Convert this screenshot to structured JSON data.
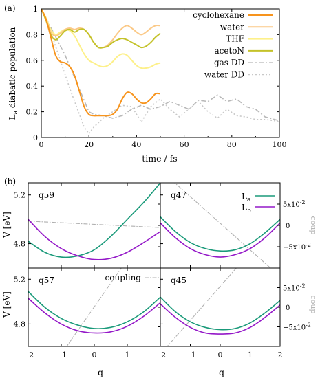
{
  "panel_a": {
    "label": "(a)",
    "xlabel": "time / fs",
    "ylabel_main": "L",
    "ylabel_sub": "a",
    "ylabel_rest": " diabatic population"
  },
  "panel_b": {
    "label": "(b)",
    "ylabel": "V [eV]",
    "xlabel": "q",
    "right_label": "coup",
    "legend": {
      "La_main": "L",
      "La_sub": "a",
      "Lb_main": "L",
      "Lb_sub": "b",
      "coupling": "coupling"
    }
  },
  "colors": {
    "cyclohexane": "#f7941d",
    "water": "#fbc987",
    "THF": "#fdf08a",
    "acetoN": "#c4c22a",
    "gas_dd": "#b8b8b8",
    "water_dd": "#c8c8c8",
    "La": "#1a9a7a",
    "Lb": "#9418c8",
    "coupling": "#b0b0b0"
  },
  "chart_data": [
    {
      "type": "line",
      "panel": "a",
      "xlabel": "time / fs",
      "ylabel": "La diabatic population",
      "xlim": [
        0,
        100
      ],
      "ylim": [
        0,
        1
      ],
      "xticks": [
        "0",
        "20",
        "40",
        "60",
        "80",
        "100"
      ],
      "yticks": [
        "0",
        "0.2",
        "0.4",
        "0.6",
        "0.8",
        "1"
      ],
      "legend_position": "top-right",
      "series": [
        {
          "name": "cyclohexane",
          "style": "solid",
          "x": [
            0,
            2,
            4,
            6,
            8,
            10,
            12,
            14,
            16,
            18,
            20,
            22,
            24,
            26,
            28,
            30,
            32,
            34,
            36,
            38,
            40,
            42,
            44,
            46,
            48,
            50
          ],
          "y": [
            1.0,
            0.92,
            0.78,
            0.64,
            0.59,
            0.58,
            0.55,
            0.48,
            0.36,
            0.24,
            0.18,
            0.17,
            0.17,
            0.17,
            0.17,
            0.18,
            0.22,
            0.3,
            0.35,
            0.34,
            0.3,
            0.27,
            0.27,
            0.3,
            0.34,
            0.34
          ]
        },
        {
          "name": "water",
          "style": "solid",
          "x": [
            0,
            2,
            4,
            6,
            8,
            10,
            12,
            14,
            16,
            18,
            20,
            22,
            24,
            26,
            28,
            30,
            32,
            34,
            36,
            38,
            40,
            42,
            44,
            46,
            48,
            50
          ],
          "y": [
            1.0,
            0.92,
            0.82,
            0.79,
            0.81,
            0.84,
            0.85,
            0.84,
            0.85,
            0.84,
            0.8,
            0.74,
            0.7,
            0.7,
            0.72,
            0.76,
            0.81,
            0.85,
            0.87,
            0.85,
            0.82,
            0.8,
            0.82,
            0.85,
            0.87,
            0.87
          ]
        },
        {
          "name": "THF",
          "style": "solid",
          "x": [
            0,
            2,
            4,
            6,
            8,
            10,
            12,
            14,
            16,
            18,
            20,
            22,
            24,
            26,
            28,
            30,
            32,
            34,
            36,
            38,
            40,
            42,
            44,
            46,
            48,
            50
          ],
          "y": [
            1.0,
            0.93,
            0.84,
            0.8,
            0.82,
            0.84,
            0.83,
            0.79,
            0.72,
            0.65,
            0.6,
            0.58,
            0.56,
            0.55,
            0.56,
            0.59,
            0.63,
            0.65,
            0.64,
            0.6,
            0.56,
            0.54,
            0.54,
            0.55,
            0.57,
            0.58
          ]
        },
        {
          "name": "acetoN",
          "style": "solid",
          "x": [
            0,
            2,
            4,
            6,
            8,
            10,
            12,
            14,
            16,
            18,
            20,
            22,
            24,
            26,
            28,
            30,
            32,
            34,
            36,
            38,
            40,
            42,
            44,
            46,
            48,
            50
          ],
          "y": [
            1.0,
            0.91,
            0.8,
            0.76,
            0.79,
            0.83,
            0.84,
            0.82,
            0.84,
            0.84,
            0.8,
            0.74,
            0.7,
            0.7,
            0.71,
            0.74,
            0.76,
            0.77,
            0.76,
            0.74,
            0.72,
            0.7,
            0.71,
            0.74,
            0.78,
            0.81
          ]
        },
        {
          "name": "gas DD",
          "style": "dash-dot",
          "x": [
            0,
            5,
            10,
            15,
            20,
            22,
            26,
            30,
            34,
            38,
            42,
            46,
            50,
            54,
            58,
            62,
            66,
            70,
            74,
            78,
            82,
            86,
            90,
            94,
            98,
            100
          ],
          "y": [
            1.0,
            0.82,
            0.64,
            0.42,
            0.2,
            0.18,
            0.17,
            0.15,
            0.17,
            0.22,
            0.25,
            0.22,
            0.24,
            0.28,
            0.25,
            0.22,
            0.29,
            0.28,
            0.33,
            0.28,
            0.3,
            0.24,
            0.22,
            0.16,
            0.14,
            0.13
          ]
        },
        {
          "name": "water DD",
          "style": "dotted",
          "x": [
            0,
            4,
            8,
            12,
            16,
            18,
            20,
            22,
            26,
            30,
            34,
            38,
            42,
            46,
            50,
            54,
            58,
            62,
            66,
            70,
            74,
            78,
            82,
            86,
            90,
            94,
            98,
            100
          ],
          "y": [
            1.0,
            0.82,
            0.6,
            0.38,
            0.18,
            0.08,
            0.03,
            0.08,
            0.15,
            0.2,
            0.25,
            0.24,
            0.12,
            0.24,
            0.3,
            0.22,
            0.16,
            0.22,
            0.28,
            0.2,
            0.15,
            0.22,
            0.17,
            0.16,
            0.14,
            0.14,
            0.13,
            0.12
          ]
        }
      ]
    },
    {
      "type": "line",
      "panel": "b",
      "title": "q59",
      "xlim": [
        -2,
        2
      ],
      "ylim": [
        4.6,
        5.3
      ],
      "coupling_ylim": [
        -0.1,
        0.1
      ],
      "xticks": [
        "-2",
        "-1",
        "0",
        "1",
        "2"
      ],
      "yticks": [
        "4.8",
        "5.2"
      ],
      "right_ticks": [
        "5x10-2",
        "0",
        "-5x10-2"
      ],
      "La": {
        "x": [
          -2,
          -1.5,
          -1,
          -0.5,
          0,
          0.5,
          1,
          1.5,
          2
        ],
        "y": [
          4.82,
          4.73,
          4.69,
          4.7,
          4.75,
          4.86,
          5.0,
          5.14,
          5.3
        ]
      },
      "Lb": {
        "x": [
          -2,
          -1.5,
          -1,
          -0.5,
          0,
          0.5,
          1,
          1.5,
          2
        ],
        "y": [
          5.0,
          4.86,
          4.76,
          4.7,
          4.67,
          4.68,
          4.73,
          4.81,
          4.9
        ]
      },
      "coupling": {
        "x": [
          -2,
          2
        ],
        "y": [
          0.01,
          -0.005
        ]
      }
    },
    {
      "type": "line",
      "panel": "b",
      "title": "q47",
      "xlim": [
        -2,
        2
      ],
      "ylim": [
        4.6,
        5.3
      ],
      "coupling_ylim": [
        -0.1,
        0.1
      ],
      "xticks": [
        "-2",
        "-1",
        "0",
        "1",
        "2"
      ],
      "yticks": [
        "4.8",
        "5.2"
      ],
      "right_ticks": [
        "5x10-2",
        "0",
        "-5x10-2"
      ],
      "legend_position": "top-right",
      "La": {
        "x": [
          -2,
          -1.5,
          -1,
          -0.5,
          0,
          0.5,
          1,
          1.5,
          2
        ],
        "y": [
          5.02,
          4.9,
          4.81,
          4.76,
          4.74,
          4.75,
          4.8,
          4.89,
          5.0
        ]
      },
      "Lb": {
        "x": [
          -2,
          -1.5,
          -1,
          -0.5,
          0,
          0.5,
          1,
          1.5,
          2
        ],
        "y": [
          4.97,
          4.85,
          4.76,
          4.71,
          4.69,
          4.71,
          4.76,
          4.85,
          4.97
        ]
      },
      "coupling": {
        "x": [
          -2,
          2
        ],
        "y": [
          0.13,
          -0.12
        ]
      }
    },
    {
      "type": "line",
      "panel": "b",
      "title": "q57",
      "xlim": [
        -2,
        2
      ],
      "ylim": [
        4.6,
        5.3
      ],
      "coupling_ylim": [
        -0.1,
        0.1
      ],
      "xticks": [
        "-2",
        "-1",
        "0",
        "1",
        "2"
      ],
      "yticks": [
        "4.8",
        "5.2"
      ],
      "right_ticks": [
        "5x10-2",
        "0",
        "-5x10-2"
      ],
      "legend_position": "top-right",
      "La": {
        "x": [
          -2,
          -1.5,
          -1,
          -0.5,
          0,
          0.5,
          1,
          1.5,
          2
        ],
        "y": [
          5.09,
          4.95,
          4.85,
          4.79,
          4.76,
          4.77,
          4.82,
          4.91,
          5.04
        ]
      },
      "Lb": {
        "x": [
          -2,
          -1.5,
          -1,
          -0.5,
          0,
          0.5,
          1,
          1.5,
          2
        ],
        "y": [
          5.03,
          4.9,
          4.8,
          4.74,
          4.72,
          4.73,
          4.78,
          4.87,
          4.99
        ]
      },
      "coupling": {
        "x": [
          -1.0,
          0.9
        ],
        "y": [
          -0.12,
          0.11
        ]
      }
    },
    {
      "type": "line",
      "panel": "b",
      "title": "q45",
      "xlim": [
        -2,
        2
      ],
      "ylim": [
        4.6,
        5.3
      ],
      "coupling_ylim": [
        -0.1,
        0.1
      ],
      "xticks": [
        "-2",
        "-1",
        "0",
        "1",
        "2"
      ],
      "yticks": [
        "4.8",
        "5.2"
      ],
      "right_ticks": [
        "5x10-2",
        "0",
        "-5x10-2"
      ],
      "La": {
        "x": [
          -2,
          -1.5,
          -1,
          -0.5,
          0,
          0.5,
          1,
          1.5,
          2
        ],
        "y": [
          5.04,
          4.91,
          4.82,
          4.77,
          4.75,
          4.76,
          4.81,
          4.9,
          5.01
        ]
      },
      "Lb": {
        "x": [
          -2,
          -1.5,
          -1,
          -0.5,
          0,
          0.5,
          1,
          1.5,
          2
        ],
        "y": [
          4.98,
          4.86,
          4.77,
          4.72,
          4.71,
          4.72,
          4.77,
          4.86,
          4.97
        ]
      },
      "coupling": {
        "x": [
          -2.0,
          1.0
        ],
        "y": [
          -0.12,
          0.14
        ]
      }
    }
  ]
}
